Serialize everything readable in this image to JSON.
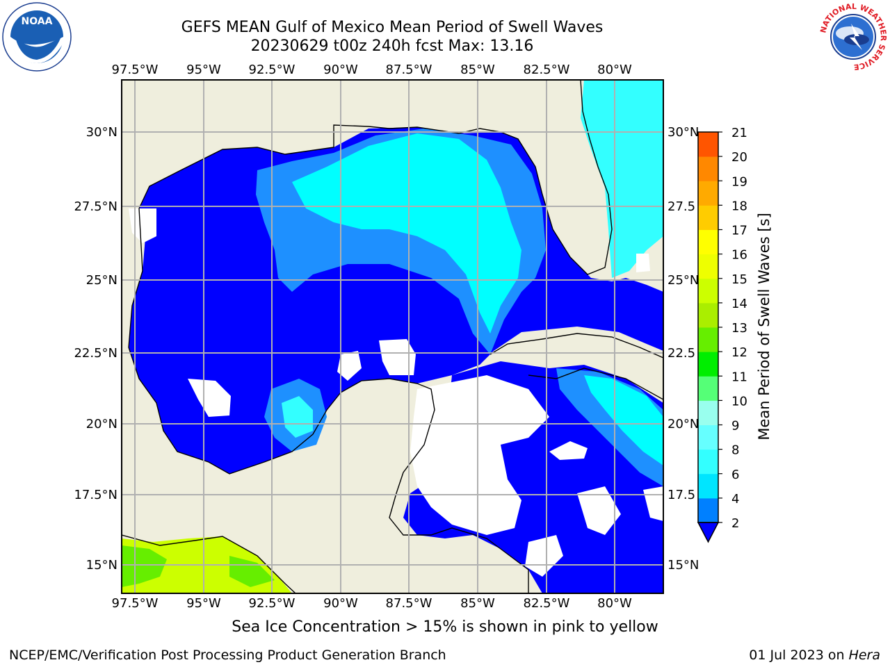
{
  "title_line1": "GEFS MEAN Gulf of Mexico Mean Period of Swell Waves",
  "title_line2": "20230629 t00z 240h fcst   Max: 13.16",
  "note": "Sea Ice Concentration > 15% is shown in pink to yellow",
  "footer_left": "NCEP/EMC/Verification Post Processing Product Generation Branch",
  "footer_right_date": "01 Jul 2023 on ",
  "footer_right_host": "Hera",
  "logos": {
    "left": "NOAA",
    "right_ring": "NATIONAL WEATHER SERVICE"
  },
  "map": {
    "lon_labels": [
      "97.5°W",
      "95°W",
      "92.5°W",
      "90°W",
      "87.5°W",
      "85°W",
      "82.5°W",
      "80°W"
    ],
    "lat_labels": [
      "30°N",
      "27.5°N",
      "25°N",
      "22.5°N",
      "20°N",
      "17.5°N",
      "15°N"
    ],
    "lat_labels_right": [
      "30°N",
      "27.5",
      "25°N",
      "22.5",
      "20°N",
      "17.5",
      "15°N"
    ],
    "colors": {
      "land": "#efeedd",
      "grid": "#b0b0b0",
      "blue": "#0000ff",
      "azure": "#1e90ff",
      "light_blue": "#3bbfff",
      "cyan": "#00ffff",
      "light_green": "#66ff33",
      "yellow_green": "#ccff00"
    }
  },
  "colorbar": {
    "label": "Mean Period of Swell Waves [s]",
    "ticks": [
      "2",
      "4",
      "6",
      "8",
      "9",
      "10",
      "11",
      "12",
      "13",
      "14",
      "15",
      "16",
      "17",
      "18",
      "19",
      "20",
      "21"
    ],
    "colors": [
      "#0080ff",
      "#00e5ff",
      "#33ffff",
      "#66ffff",
      "#99ffee",
      "#55ff77",
      "#00ee00",
      "#66ee00",
      "#aaee00",
      "#ccff00",
      "#eeff00",
      "#ffff00",
      "#ffcc00",
      "#ffaa00",
      "#ff8800",
      "#ff5500",
      "#ff2200",
      "#ff0000"
    ]
  }
}
